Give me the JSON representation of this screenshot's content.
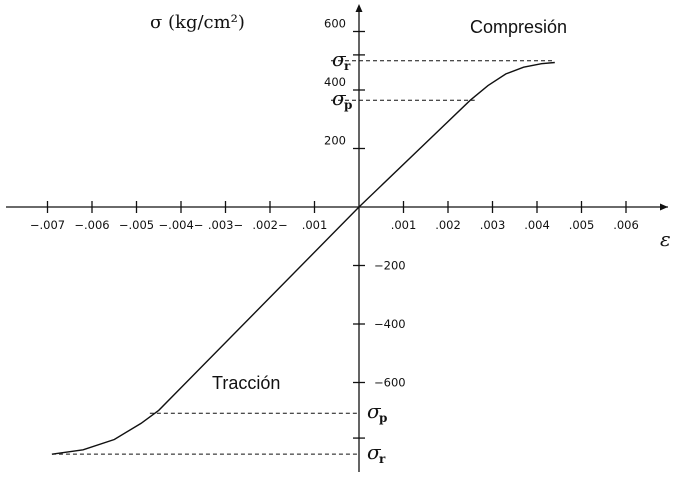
{
  "chart_data": {
    "type": "line",
    "ylabel": "σ (kg/cm²)",
    "xlabel": "ε",
    "x_ticks": [
      {
        "value": -0.007,
        "label": "−.007"
      },
      {
        "value": -0.006,
        "label": "−.006"
      },
      {
        "value": -0.005,
        "label": "−.005"
      },
      {
        "value": -0.004,
        "label": "−.004−"
      },
      {
        "value": -0.003,
        "label": ".003−"
      },
      {
        "value": -0.002,
        "label": ".002−"
      },
      {
        "value": -0.001,
        "label": ".001"
      },
      {
        "value": 0.001,
        "label": ".001"
      },
      {
        "value": 0.002,
        "label": ".002"
      },
      {
        "value": 0.003,
        "label": ".003"
      },
      {
        "value": 0.004,
        "label": ".004"
      },
      {
        "value": 0.005,
        "label": ".005"
      },
      {
        "value": 0.006,
        "label": ".006"
      }
    ],
    "y_ticks": [
      {
        "value": 600,
        "label": "600"
      },
      {
        "value": 400,
        "label": "400"
      },
      {
        "value": 200,
        "label": "200"
      },
      {
        "value": -200,
        "label": "−200"
      },
      {
        "value": -400,
        "label": "−400"
      },
      {
        "value": -600,
        "label": "−600"
      }
    ],
    "xlim": [
      -0.0078,
      0.0068
    ],
    "ylim": [
      -880,
      680
    ],
    "grid": false,
    "series": [
      {
        "x": [
          -0.0069,
          -0.0062,
          -0.0055,
          -0.0049,
          -0.0045,
          0,
          0.0025,
          0.0029,
          0.0033,
          0.0037,
          0.0041,
          0.0044
        ],
        "y": [
          -845,
          -830,
          -795,
          -740,
          -695,
          0,
          365,
          415,
          455,
          478,
          490,
          494
        ]
      }
    ],
    "reference_lines": [
      {
        "label": "σ",
        "sub": "r",
        "y": 500,
        "x_end": 0.0044
      },
      {
        "label": "σ",
        "sub": "p",
        "y": 365,
        "x_end": 0.0026
      },
      {
        "label": "σ",
        "sub": "p",
        "y": -705,
        "x_end": -0.0047
      },
      {
        "label": "σ",
        "sub": "r",
        "y": -845,
        "x_end": -0.0069
      }
    ],
    "annotations": [
      {
        "text": "Compresión",
        "region": "compression"
      },
      {
        "text": "Tracción",
        "region": "traction"
      }
    ]
  }
}
